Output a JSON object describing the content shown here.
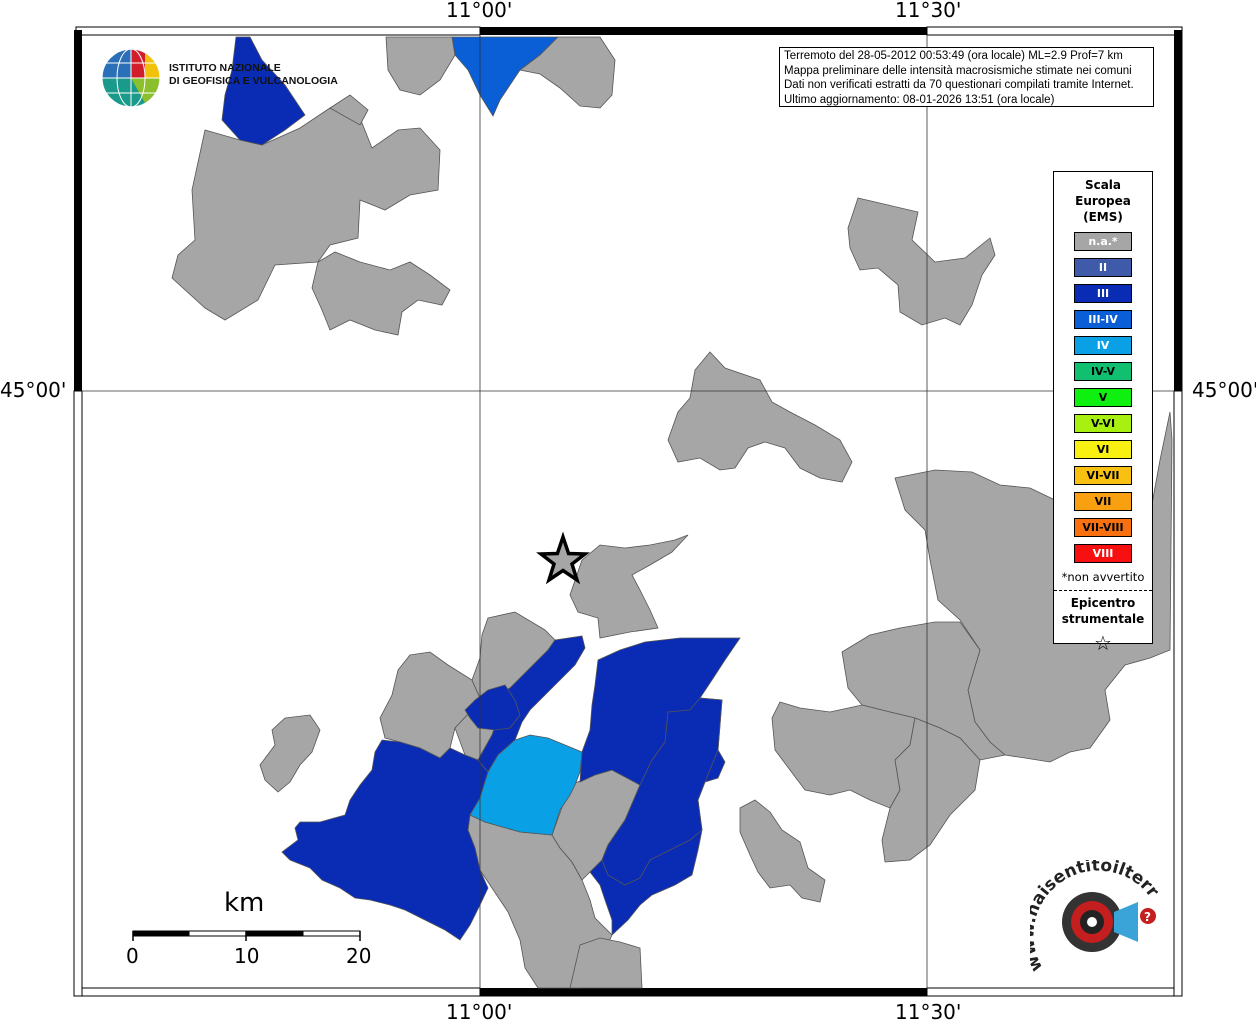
{
  "map": {
    "coordinates": {
      "lon_left": "11°00'",
      "lon_right": "11°30'",
      "lat_center": "45°00'"
    },
    "info_lines": [
      "Terremoto del 28-05-2012 00:53:49 (ora locale) ML=2.9 Prof=7 km",
      "Mappa preliminare delle intensità macrosismiche stimate nei comuni",
      "Dati non verificati estratti da 70 questionari compilati tramite Internet.",
      "Ultimo aggiornamento: 08-01-2026 13:51 (ora locale)"
    ],
    "institute": {
      "line1": "ISTITUTO NAZIONALE",
      "line2": "DI GEOFISICA E VULCANOLOGIA"
    },
    "legend": {
      "title_lines": [
        "Scala",
        "Europea",
        "(EMS)"
      ],
      "items": [
        {
          "label": "n.a.*",
          "color": "#a6a6a6",
          "dark": false
        },
        {
          "label": "II",
          "color": "#3e5aa8",
          "dark": false
        },
        {
          "label": "III",
          "color": "#0a2cb5",
          "dark": false
        },
        {
          "label": "III-IV",
          "color": "#0a5fd6",
          "dark": false
        },
        {
          "label": "IV",
          "color": "#0aa0e6",
          "dark": false
        },
        {
          "label": "IV-V",
          "color": "#10c070",
          "dark": true
        },
        {
          "label": "V",
          "color": "#10f010",
          "dark": true
        },
        {
          "label": "V-VI",
          "color": "#a8f010",
          "dark": true
        },
        {
          "label": "VI",
          "color": "#f8f010",
          "dark": true
        },
        {
          "label": "VI-VII",
          "color": "#f8c010",
          "dark": true
        },
        {
          "label": "VII",
          "color": "#f8a010",
          "dark": true
        },
        {
          "label": "VII-VIII",
          "color": "#f87010",
          "dark": true
        },
        {
          "label": "VIII",
          "color": "#f81010",
          "dark": false
        }
      ],
      "note": "*non avvertito",
      "epicenter_lines": [
        "Epicentro",
        "strumentale"
      ]
    },
    "scale_bar": {
      "unit": "km",
      "ticks": [
        "0",
        "10",
        "20"
      ]
    },
    "colors": {
      "na": "#a6a6a6",
      "ems_III": "#0a2cb5",
      "ems_III_IV": "#0a5fd6",
      "ems_IV": "#0aa0e6"
    },
    "watermark": {
      "text": "www.haisentitoilterremoto.it"
    }
  }
}
